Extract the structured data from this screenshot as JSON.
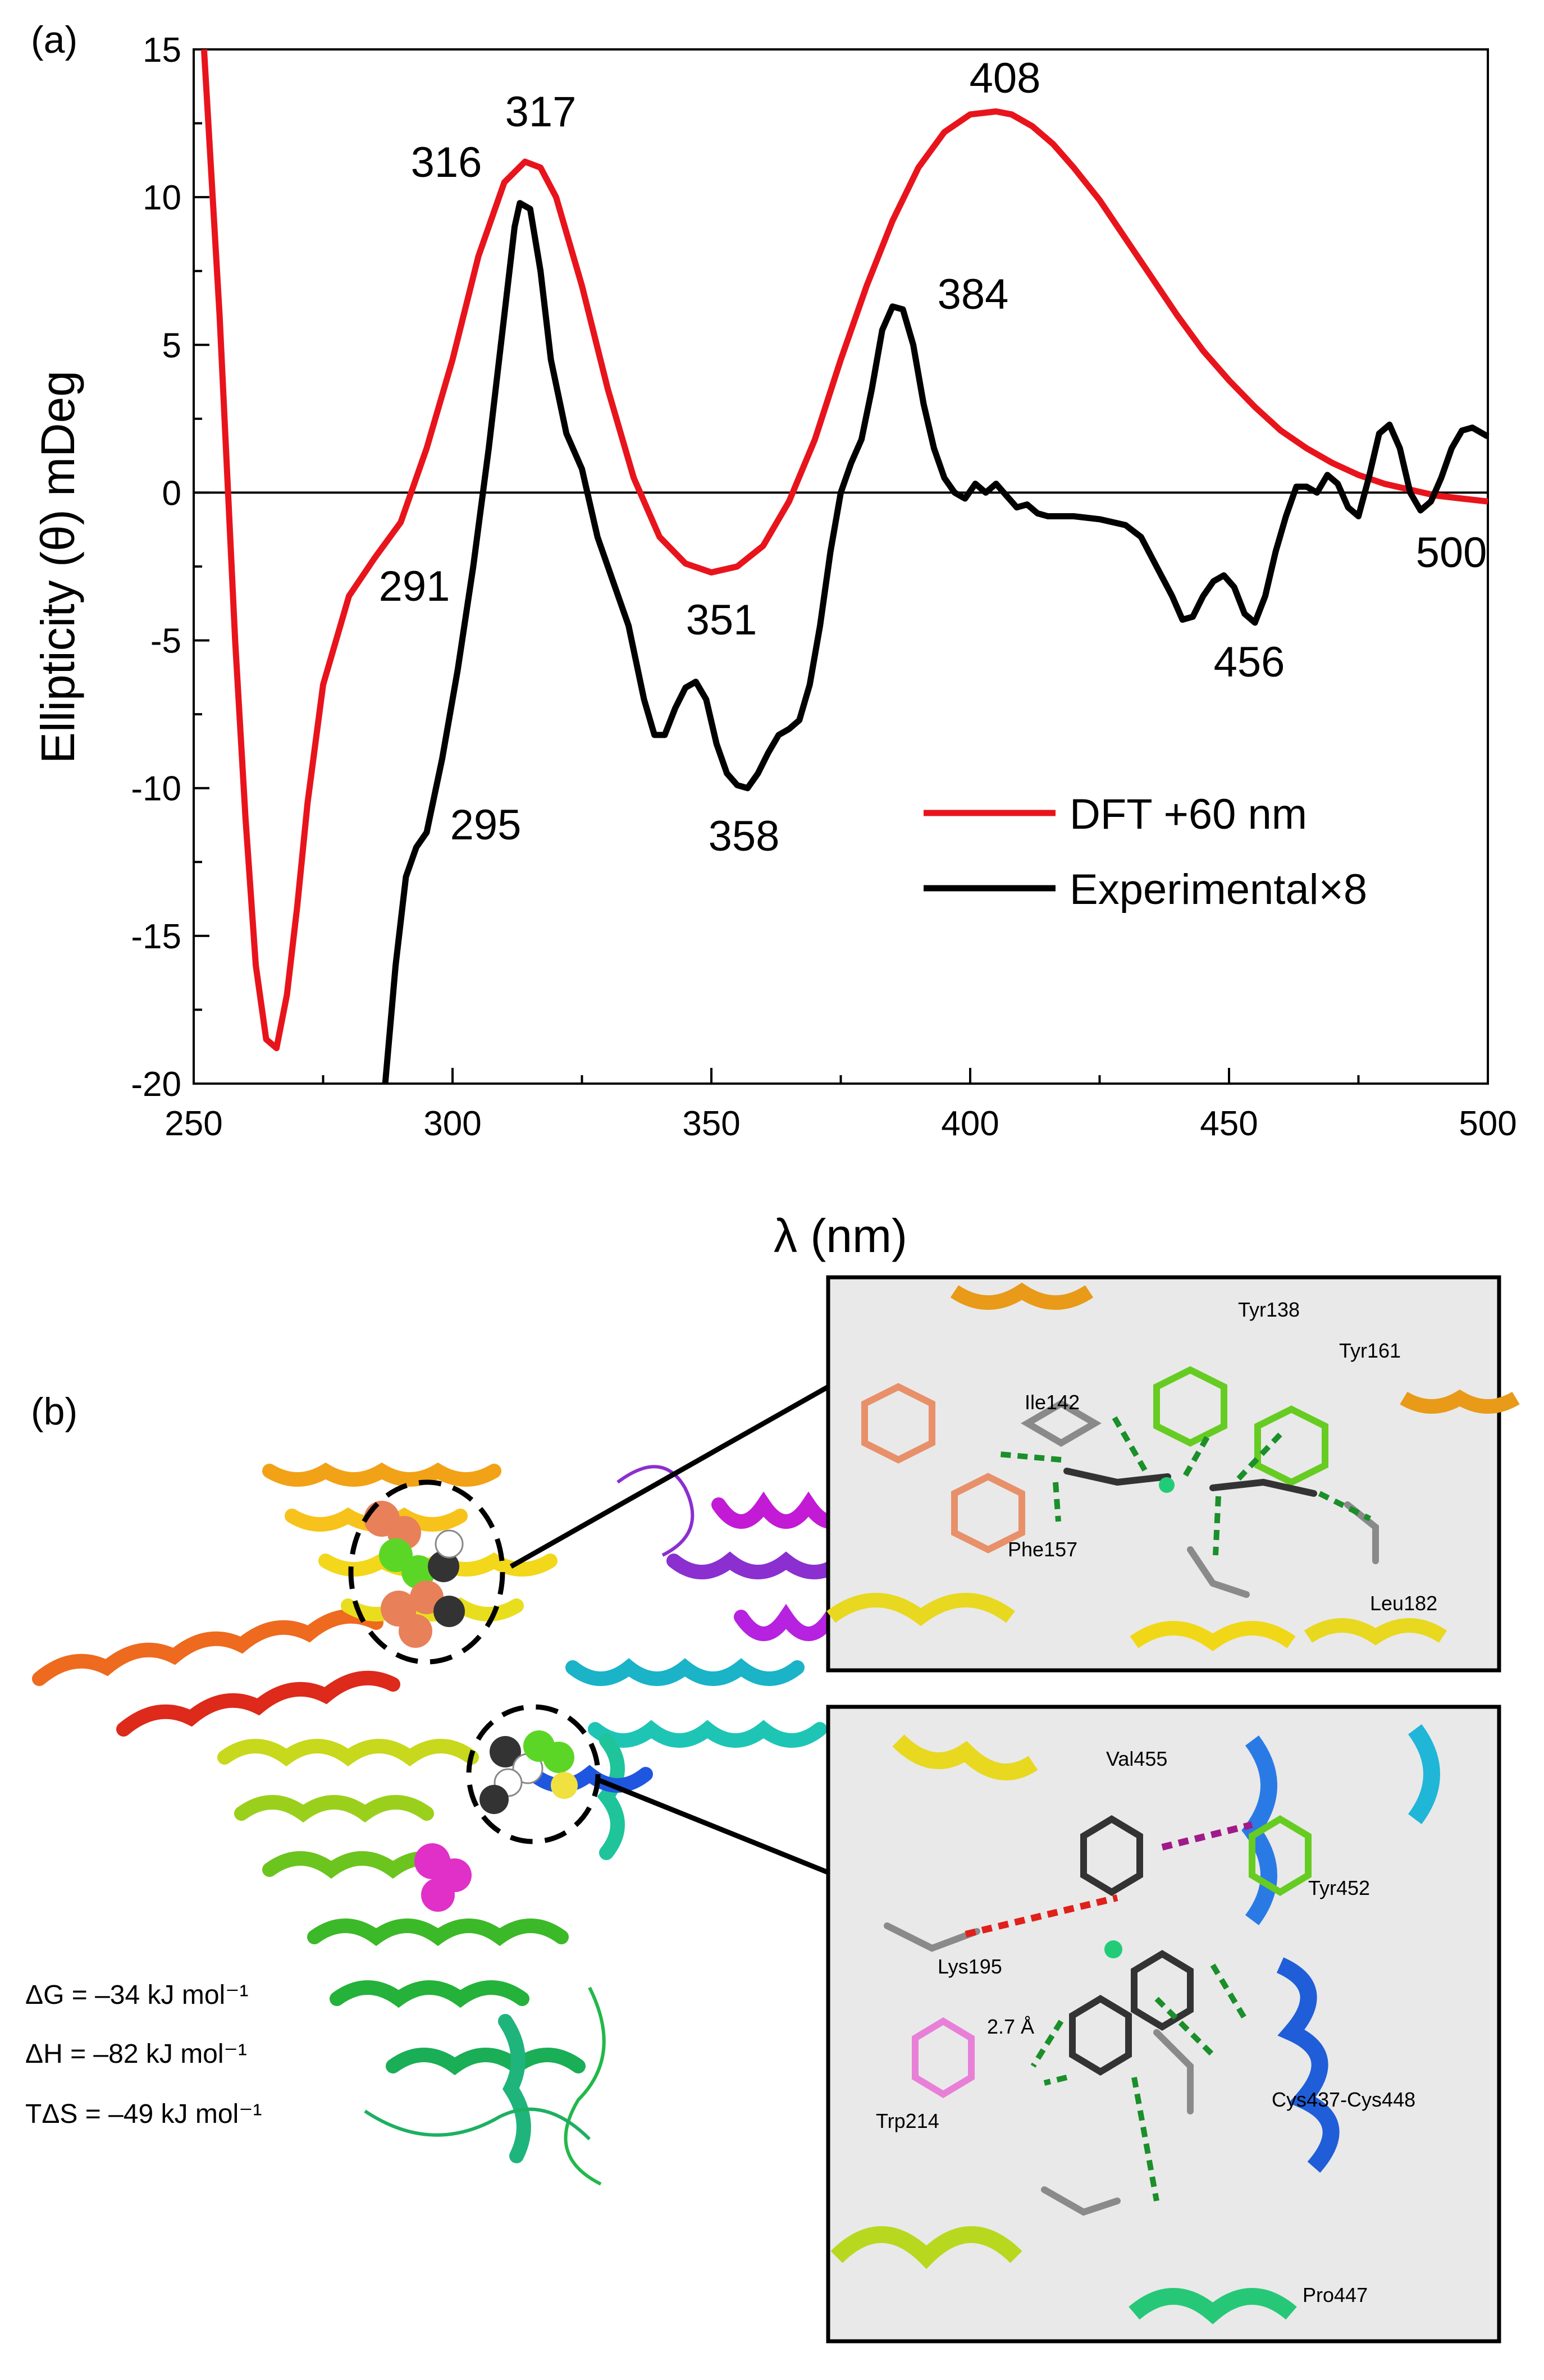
{
  "panel_a": {
    "label": "(a)"
  },
  "panel_b": {
    "label": "(b)",
    "thermo": [
      "ΔG = –34 kJ mol⁻¹",
      "ΔH = –82 kJ mol⁻¹",
      "TΔS = –49 kJ mol⁻¹"
    ],
    "inset_top_labels": [
      "Tyr138",
      "Tyr161",
      "Ile142",
      "Phe157",
      "Leu182"
    ],
    "inset_bottom_labels": [
      "Val455",
      "Tyr452",
      "Lys195",
      "2.7 Å",
      "Trp214",
      "Cys437-Cys448",
      "Pro447"
    ]
  },
  "colors": {
    "dft": "#e8141c",
    "experimental": "#000000"
  },
  "chart_data": {
    "type": "line",
    "xlabel": "λ (nm)",
    "ylabel": "Ellipticity (θ) mDeg",
    "xlim": [
      250,
      500
    ],
    "ylim": [
      -20,
      15
    ],
    "xticks": [
      250,
      300,
      350,
      400,
      450,
      500
    ],
    "yticks": [
      -20,
      -15,
      -10,
      -5,
      0,
      5,
      10,
      15
    ],
    "grid": false,
    "legend_position": "lower-right",
    "series": [
      {
        "name": "DFT +60 nm",
        "color": "#e8141c",
        "x": [
          252,
          255,
          258,
          260,
          262,
          264,
          266,
          268,
          270,
          272,
          275,
          280,
          285,
          290,
          295,
          300,
          305,
          310,
          314,
          317,
          320,
          325,
          330,
          335,
          340,
          345,
          350,
          355,
          360,
          365,
          370,
          375,
          380,
          385,
          390,
          395,
          400,
          405,
          408,
          412,
          416,
          420,
          425,
          430,
          435,
          440,
          445,
          450,
          455,
          460,
          465,
          470,
          475,
          480,
          485,
          490,
          495,
          500
        ],
        "y": [
          15,
          6,
          -5,
          -11,
          -16,
          -18.5,
          -18.8,
          -17,
          -14,
          -10.5,
          -6.5,
          -3.5,
          -2.2,
          -1,
          1.5,
          4.5,
          8,
          10.5,
          11.2,
          11,
          10,
          7,
          3.5,
          0.5,
          -1.5,
          -2.4,
          -2.7,
          -2.5,
          -1.8,
          -0.3,
          1.8,
          4.5,
          7,
          9.2,
          11,
          12.2,
          12.8,
          12.9,
          12.8,
          12.4,
          11.8,
          11,
          9.9,
          8.6,
          7.3,
          6,
          4.8,
          3.8,
          2.9,
          2.1,
          1.5,
          1,
          0.6,
          0.3,
          0.1,
          -0.1,
          -0.2,
          -0.3
        ]
      },
      {
        "name": "Experimental×8",
        "color": "#000000",
        "x": [
          287,
          289,
          291,
          293,
          295,
          298,
          301,
          304,
          307,
          310,
          312,
          313,
          315,
          317,
          319,
          322,
          325,
          328,
          331,
          334,
          337,
          339,
          341,
          343,
          345,
          347,
          349,
          351,
          353,
          355,
          357,
          359,
          361,
          363,
          365,
          367,
          369,
          371,
          373,
          375,
          377,
          379,
          381,
          383,
          385,
          387,
          389,
          391,
          393,
          395,
          397,
          399,
          401,
          403,
          405,
          407,
          409,
          411,
          413,
          415,
          420,
          425,
          430,
          433,
          436,
          439,
          441,
          443,
          445,
          447,
          449,
          451,
          453,
          455,
          457,
          459,
          461,
          463,
          465,
          467,
          469,
          471,
          473,
          475,
          477,
          479,
          481,
          483,
          485,
          487,
          489,
          491,
          493,
          495,
          497,
          499,
          500
        ],
        "y": [
          -20,
          -16,
          -13,
          -12,
          -11.5,
          -9,
          -6,
          -2.5,
          1.5,
          6,
          9,
          9.8,
          9.6,
          7.5,
          4.5,
          2,
          0.8,
          -1.5,
          -3,
          -4.5,
          -7,
          -8.2,
          -8.2,
          -7.3,
          -6.6,
          -6.4,
          -7,
          -8.5,
          -9.5,
          -9.9,
          -10,
          -9.5,
          -8.8,
          -8.2,
          -8,
          -7.7,
          -6.5,
          -4.5,
          -2,
          0,
          1,
          1.8,
          3.5,
          5.5,
          6.3,
          6.2,
          5,
          3,
          1.5,
          0.5,
          0,
          -0.2,
          0.3,
          0,
          0.3,
          -0.1,
          -0.5,
          -0.4,
          -0.7,
          -0.8,
          -0.8,
          -0.9,
          -1.1,
          -1.5,
          -2.5,
          -3.5,
          -4.3,
          -4.2,
          -3.5,
          -3,
          -2.8,
          -3.2,
          -4.1,
          -4.4,
          -3.5,
          -2,
          -0.8,
          0.2,
          0.2,
          0,
          0.6,
          0.3,
          -0.5,
          -0.8,
          0.5,
          2,
          2.3,
          1.5,
          0,
          -0.6,
          -0.3,
          0.5,
          1.5,
          2.1,
          2.2,
          2,
          1.9
        ]
      }
    ],
    "annotations": [
      {
        "text": "317",
        "color": "#e8141c"
      },
      {
        "text": "408",
        "color": "#e8141c"
      },
      {
        "text": "291",
        "color": "#e8141c"
      },
      {
        "text": "351",
        "color": "#e8141c"
      },
      {
        "text": "500",
        "color": "#e8141c"
      },
      {
        "text": "316",
        "color": "#000000"
      },
      {
        "text": "384",
        "color": "#000000"
      },
      {
        "text": "295",
        "color": "#000000"
      },
      {
        "text": "358",
        "color": "#000000"
      },
      {
        "text": "456",
        "color": "#000000"
      }
    ]
  }
}
